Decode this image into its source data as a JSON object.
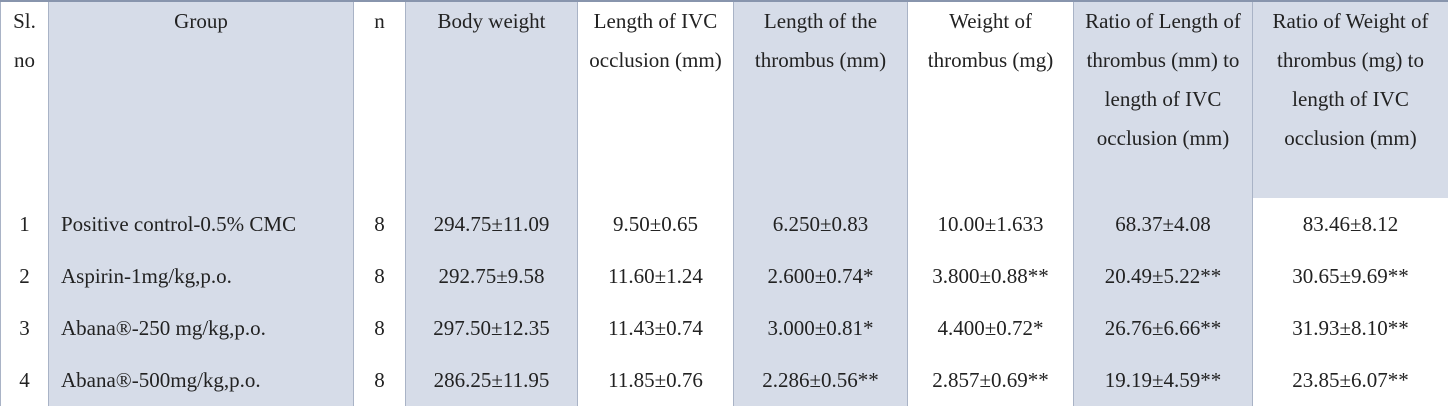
{
  "table": {
    "header": [
      "Sl. no",
      "Group",
      "n",
      "Body weight",
      "Length of IVC occlusion (mm)",
      "Length of the thrombus (mm)",
      "Weight of thrombus (mg)",
      "Ratio of Length of thrombus (mm) to length of IVC occlusion (mm)",
      "Ratio of Weight of thrombus (mg) to length of IVC occlusion (mm)"
    ],
    "rows": [
      [
        "1",
        "Positive control-0.5% CMC",
        "8",
        "294.75±11.09",
        "9.50±0.65",
        "6.250±0.83",
        "10.00±1.633",
        "68.37±4.08",
        "83.46±8.12"
      ],
      [
        "2",
        "Aspirin-1mg/kg,p.o.",
        "8",
        "292.75±9.58",
        "11.60±1.24",
        "2.600±0.74*",
        "3.800±0.88**",
        "20.49±5.22**",
        "30.65±9.69**"
      ],
      [
        "3",
        "Abana®-250 mg/kg,p.o.",
        "8",
        "297.50±12.35",
        "11.43±0.74",
        "3.000±0.81*",
        "4.400±0.72*",
        "26.76±6.66**",
        "31.93±8.10**"
      ],
      [
        "4",
        "Abana®-500mg/kg,p.o.",
        "8",
        "286.25±11.95",
        "11.85±0.76",
        "2.286±0.56**",
        "2.857±0.69**",
        "19.19±4.59**",
        "23.85±6.07**"
      ]
    ]
  }
}
